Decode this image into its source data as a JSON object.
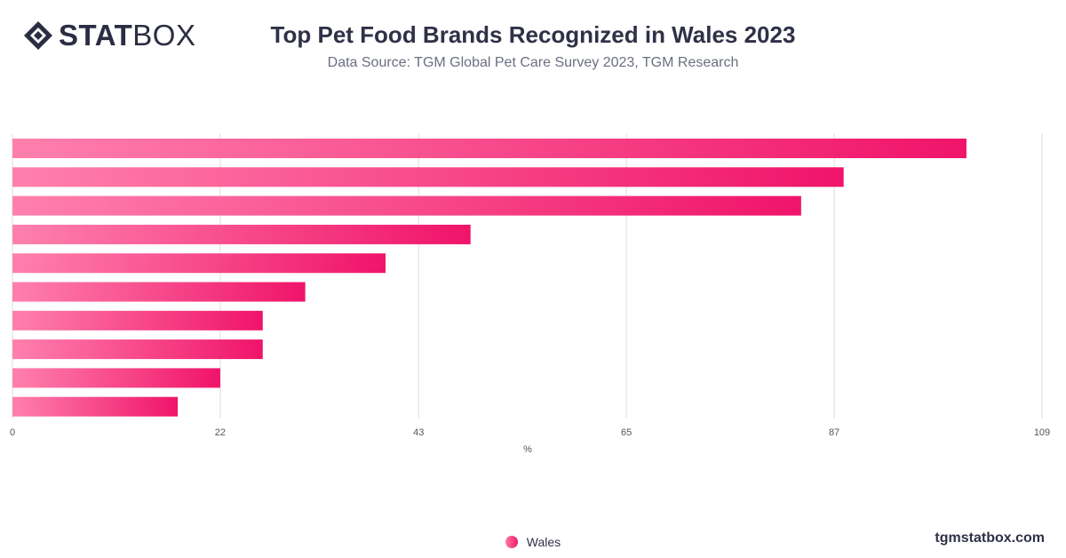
{
  "brand": {
    "logo_bold": "STAT",
    "logo_light": "BOX",
    "footer": "tgmstatbox.com"
  },
  "header": {
    "title": "Top Pet Food Brands Recognized in Wales 2023",
    "subtitle": "Data Source: TGM Global Pet Care Survey 2023, TGM Research"
  },
  "legend": {
    "series_name": "Wales"
  },
  "colors": {
    "bar_start": "#ff80ad",
    "bar_end": "#f0146a",
    "grid": "#dddddd",
    "text": "#2f3147"
  },
  "chart_data": {
    "type": "bar",
    "orientation": "horizontal",
    "categories": [
      "",
      "",
      "",
      "",
      "",
      "",
      "",
      "",
      "",
      ""
    ],
    "series": [
      {
        "name": "Wales",
        "values": [
          101,
          88,
          83.5,
          48.5,
          39.5,
          31,
          26.5,
          26.5,
          22,
          17.5
        ]
      }
    ],
    "xlabel": "%",
    "ylabel": "",
    "xlim": [
      0,
      109
    ],
    "xticks": [
      "0",
      "22",
      "43",
      "65",
      "87",
      "109"
    ],
    "grid": true,
    "legend_position": "bottom"
  }
}
